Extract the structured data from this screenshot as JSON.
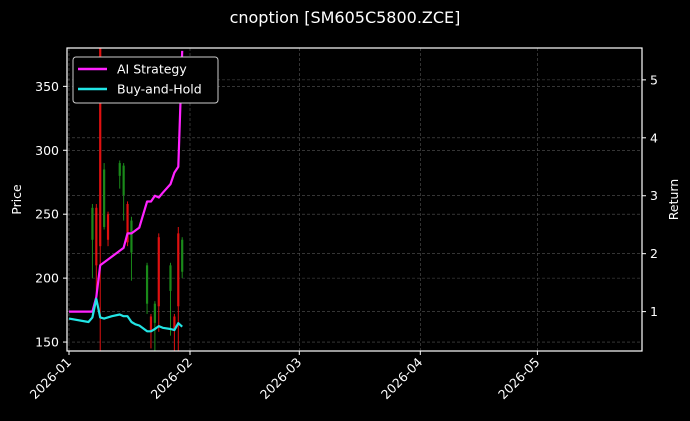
{
  "title": "cnoption [SM605C5800.ZCE]",
  "colors": {
    "background": "#000000",
    "grid": "#555555",
    "axis": "#ffffff",
    "up_candle": "#1a8a1a",
    "down_candle": "#e01010",
    "strategy": "#ff22ff",
    "buy_hold": "#22e5e5"
  },
  "legend": {
    "items": [
      {
        "label": "AI Strategy",
        "color": "#ff22ff"
      },
      {
        "label": "Buy-and-Hold",
        "color": "#22e5e5"
      }
    ]
  },
  "chart_data": {
    "type": "line",
    "title": "cnoption [SM605C5800.ZCE]",
    "xlabel": "",
    "ylabel": "Price",
    "y2label": "Return",
    "x_ticks": [
      "2026-01",
      "2026-02",
      "2026-03",
      "2026-04",
      "2026-05"
    ],
    "y_ticks": [
      150,
      200,
      250,
      300,
      350
    ],
    "y2_ticks": [
      1,
      2,
      3,
      4,
      5
    ],
    "ylim": [
      143,
      380
    ],
    "y2lim": [
      0.32,
      5.55
    ],
    "xlim_days": [
      0,
      148
    ],
    "grid": true,
    "legend_position": "upper left",
    "candles": [
      {
        "day": 6,
        "open": 230,
        "close": 255,
        "high": 258,
        "low": 200
      },
      {
        "day": 7,
        "open": 255,
        "close": 210,
        "high": 258,
        "low": 185
      },
      {
        "day": 8,
        "open": 380,
        "close": 225,
        "high": 380,
        "low": 140
      },
      {
        "day": 9,
        "open": 240,
        "close": 285,
        "high": 290,
        "low": 238
      },
      {
        "day": 10,
        "open": 250,
        "close": 230,
        "high": 252,
        "low": 225
      },
      {
        "day": 13,
        "open": 280,
        "close": 290,
        "high": 292,
        "low": 270
      },
      {
        "day": 14,
        "open": 265,
        "close": 288,
        "high": 290,
        "low": 245
      },
      {
        "day": 15,
        "open": 258,
        "close": 228,
        "high": 260,
        "low": 225
      },
      {
        "day": 16,
        "open": 220,
        "close": 245,
        "high": 248,
        "low": 198
      },
      {
        "day": 20,
        "open": 180,
        "close": 210,
        "high": 212,
        "low": 172
      },
      {
        "day": 21,
        "open": 170,
        "close": 158,
        "high": 172,
        "low": 145
      },
      {
        "day": 22,
        "open": 165,
        "close": 180,
        "high": 182,
        "low": 140
      },
      {
        "day": 23,
        "open": 232,
        "close": 178,
        "high": 235,
        "low": 158
      },
      {
        "day": 26,
        "open": 190,
        "close": 210,
        "high": 212,
        "low": 155
      },
      {
        "day": 27,
        "open": 170,
        "close": 160,
        "high": 172,
        "low": 140
      },
      {
        "day": 28,
        "open": 235,
        "close": 178,
        "high": 240,
        "low": 140
      },
      {
        "day": 29,
        "open": 205,
        "close": 230,
        "high": 232,
        "low": 200
      }
    ],
    "series": [
      {
        "name": "AI Strategy",
        "days": [
          0,
          5,
          6,
          7,
          8,
          9,
          13,
          14,
          15,
          16,
          17,
          18,
          20,
          21,
          22,
          23,
          24,
          26,
          27,
          28,
          29
        ],
        "values": [
          1.0,
          1.0,
          1.0,
          1.25,
          1.8,
          1.85,
          2.05,
          2.1,
          2.35,
          2.35,
          2.4,
          2.45,
          2.9,
          2.9,
          3.0,
          2.97,
          3.05,
          3.2,
          3.4,
          3.5,
          5.5
        ]
      },
      {
        "name": "Buy-and-Hold",
        "days": [
          0,
          5,
          6,
          7,
          8,
          9,
          11,
          13,
          14,
          15,
          16,
          17,
          18,
          20,
          21,
          22,
          23,
          24,
          26,
          27,
          28,
          29
        ],
        "values": [
          0.88,
          0.82,
          0.9,
          1.22,
          0.9,
          0.88,
          0.92,
          0.95,
          0.92,
          0.92,
          0.82,
          0.78,
          0.76,
          0.66,
          0.66,
          0.7,
          0.75,
          0.72,
          0.7,
          0.68,
          0.8,
          0.74
        ]
      }
    ]
  }
}
